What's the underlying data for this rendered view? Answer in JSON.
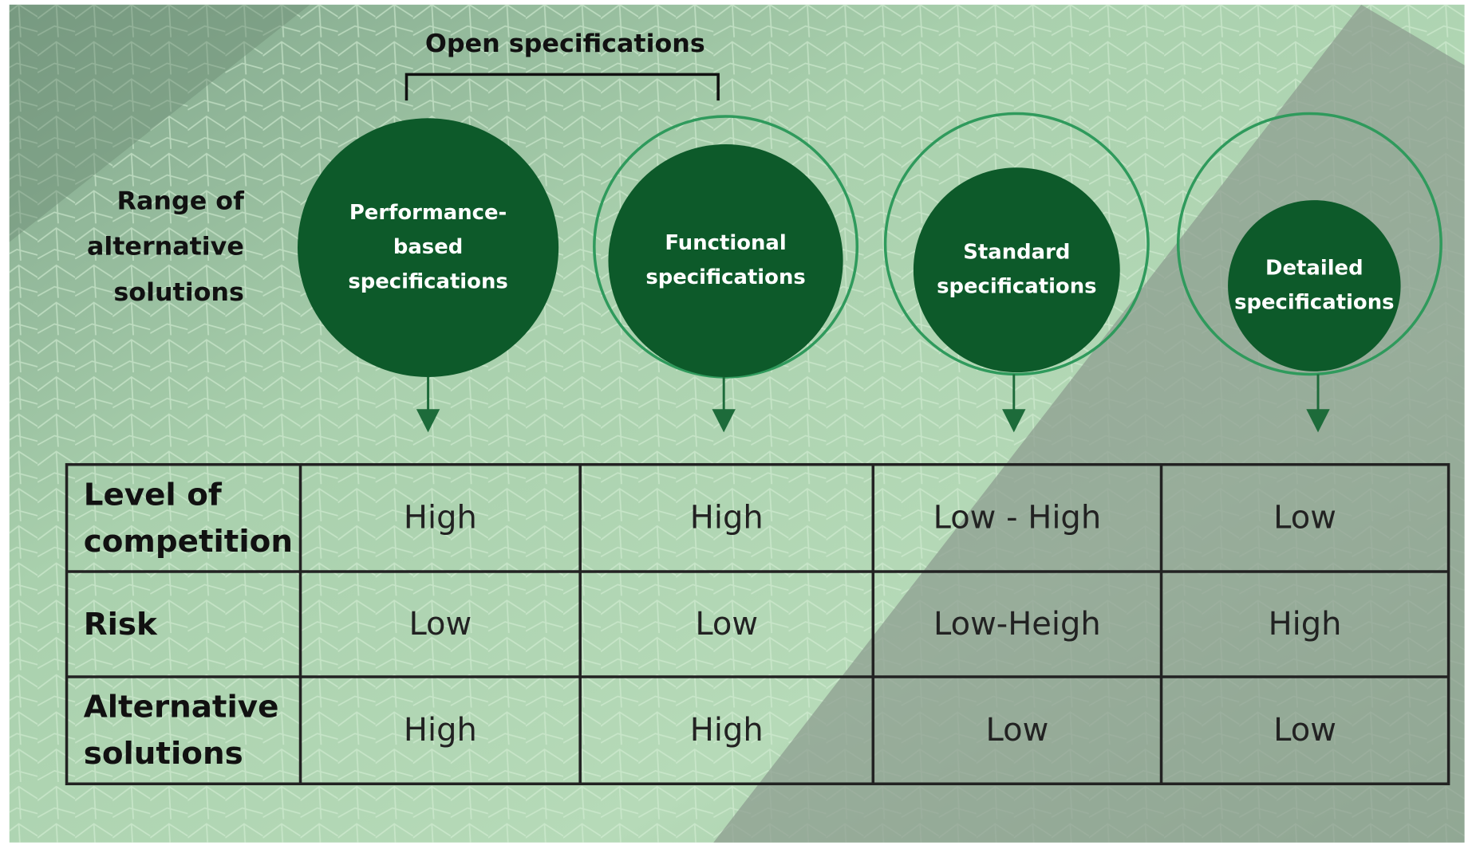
{
  "bracket_label": "Open specifications",
  "side_label": [
    "Range of",
    "alternative",
    "solutions"
  ],
  "circles": [
    {
      "label": [
        "Performance-",
        "based",
        "specifications"
      ]
    },
    {
      "label": [
        "Functional",
        "specifications"
      ]
    },
    {
      "label": [
        "Standard",
        "specifications"
      ]
    },
    {
      "label": [
        "Detailed",
        "specifications"
      ]
    }
  ],
  "table": {
    "rows": [
      {
        "label": [
          "Level of",
          "competition"
        ],
        "cells": [
          "High",
          "High",
          "Low - High",
          "Low"
        ]
      },
      {
        "label": [
          "Risk"
        ],
        "cells": [
          "Low",
          "Low",
          "Low-Heigh",
          "High"
        ]
      },
      {
        "label": [
          "Alternative",
          "solutions"
        ],
        "cells": [
          "High",
          "High",
          "Low",
          "Low"
        ]
      }
    ]
  }
}
